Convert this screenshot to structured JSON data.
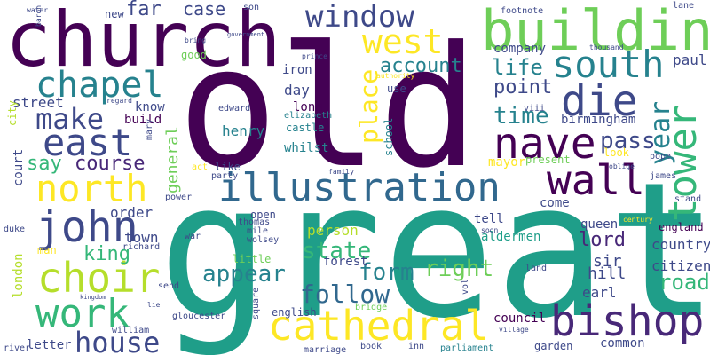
{
  "palette": {
    "dark_purple": "#440154",
    "purple": "#482878",
    "indigo": "#3e4989",
    "blue": "#31688e",
    "teal": "#26828e",
    "teal_green": "#1f9e89",
    "green": "#35b779",
    "light_green": "#6ece58",
    "lime": "#b5de2b",
    "yellow": "#fde725"
  },
  "words": [
    {
      "text": "great",
      "color": "#1f9e89"
    },
    {
      "text": "old",
      "color": "#440154"
    },
    {
      "text": "church",
      "color": "#440154"
    },
    {
      "text": "building",
      "color": "#6ece58"
    },
    {
      "text": "cathedral",
      "color": "#fde725"
    },
    {
      "text": "illustration",
      "color": "#31688e"
    },
    {
      "text": "bishop",
      "color": "#482878"
    },
    {
      "text": "wall",
      "color": "#440154"
    },
    {
      "text": "nave",
      "color": "#440154"
    },
    {
      "text": "choir",
      "color": "#b5de2b"
    },
    {
      "text": "work",
      "color": "#35b779"
    },
    {
      "text": "north",
      "color": "#fde725"
    },
    {
      "text": "east",
      "color": "#3e4989"
    },
    {
      "text": "john",
      "color": "#3e4989"
    },
    {
      "text": "chapel",
      "color": "#26828e"
    },
    {
      "text": "west",
      "color": "#fde725"
    },
    {
      "text": "south",
      "color": "#26828e"
    },
    {
      "text": "die",
      "color": "#3e4989"
    },
    {
      "text": "window",
      "color": "#3e4989"
    },
    {
      "text": "make",
      "color": "#3e4989"
    },
    {
      "text": "house",
      "color": "#3e4989"
    },
    {
      "text": "tower",
      "color": "#35b779"
    },
    {
      "text": "year",
      "color": "#26828e"
    },
    {
      "text": "place",
      "color": "#fde725"
    },
    {
      "text": "follow",
      "color": "#31688e"
    },
    {
      "text": "state",
      "color": "#35b779"
    },
    {
      "text": "appear",
      "color": "#26828e"
    },
    {
      "text": "form",
      "color": "#26828e"
    },
    {
      "text": "account",
      "color": "#26828e"
    },
    {
      "text": "life",
      "color": "#26828e"
    },
    {
      "text": "time",
      "color": "#26828e"
    },
    {
      "text": "say",
      "color": "#35b779"
    },
    {
      "text": "course",
      "color": "#482878"
    },
    {
      "text": "pass",
      "color": "#3e4989"
    },
    {
      "text": "right",
      "color": "#6ece58"
    },
    {
      "text": "road",
      "color": "#35b779"
    },
    {
      "text": "lord",
      "color": "#482878"
    },
    {
      "text": "king",
      "color": "#35b779"
    },
    {
      "text": "point",
      "color": "#3e4989"
    },
    {
      "text": "case",
      "color": "#3e4989"
    },
    {
      "text": "far",
      "color": "#3e4989"
    },
    {
      "text": "general",
      "color": "#6ece58"
    },
    {
      "text": "person",
      "color": "#b5de2b"
    },
    {
      "text": "day",
      "color": "#3e4989"
    },
    {
      "text": "street",
      "color": "#3e4989"
    },
    {
      "text": "town",
      "color": "#3e4989"
    },
    {
      "text": "order",
      "color": "#3e4989"
    },
    {
      "text": "sir",
      "color": "#3e4989"
    },
    {
      "text": "hill",
      "color": "#3e4989"
    },
    {
      "text": "earl",
      "color": "#3e4989"
    },
    {
      "text": "country",
      "color": "#3e4989"
    },
    {
      "text": "citizen",
      "color": "#3e4989"
    },
    {
      "text": "london",
      "color": "#b5de2b"
    },
    {
      "text": "court",
      "color": "#3e4989"
    },
    {
      "text": "henry",
      "color": "#26828e"
    },
    {
      "text": "long",
      "color": "#440154"
    },
    {
      "text": "know",
      "color": "#3e4989"
    },
    {
      "text": "build",
      "color": "#440154"
    },
    {
      "text": "company",
      "color": "#3e4989"
    },
    {
      "text": "paul",
      "color": "#3e4989"
    },
    {
      "text": "birmingham",
      "color": "#3e4989"
    },
    {
      "text": "whilst",
      "color": "#26828e"
    },
    {
      "text": "castle",
      "color": "#26828e"
    },
    {
      "text": "iron",
      "color": "#3e4989"
    },
    {
      "text": "school",
      "color": "#26828e"
    },
    {
      "text": "mayor",
      "color": "#fde725"
    },
    {
      "text": "present",
      "color": "#6ece58"
    },
    {
      "text": "look",
      "color": "#fde725"
    },
    {
      "text": "come",
      "color": "#3e4989"
    },
    {
      "text": "aldermen",
      "color": "#1f9e89"
    },
    {
      "text": "forest",
      "color": "#3e4989"
    },
    {
      "text": "england",
      "color": "#440154"
    },
    {
      "text": "queen",
      "color": "#3e4989"
    },
    {
      "text": "tell",
      "color": "#3e4989"
    },
    {
      "text": "council",
      "color": "#440154"
    },
    {
      "text": "common",
      "color": "#3e4989"
    },
    {
      "text": "garden",
      "color": "#3e4989"
    },
    {
      "text": "letter",
      "color": "#3e4989"
    },
    {
      "text": "man",
      "color": "#fde725"
    },
    {
      "text": "little",
      "color": "#6ece58"
    },
    {
      "text": "english",
      "color": "#3e4989"
    },
    {
      "text": "open",
      "color": "#3e4989"
    },
    {
      "text": "good",
      "color": "#6ece58"
    },
    {
      "text": "use",
      "color": "#3e4989"
    },
    {
      "text": "new",
      "color": "#3e4989"
    },
    {
      "text": "james",
      "color": "#3e4989"
    },
    {
      "text": "stand",
      "color": "#3e4989"
    },
    {
      "text": "like",
      "color": "#3e4989"
    },
    {
      "text": "gloucester",
      "color": "#3e4989"
    },
    {
      "text": "bridge",
      "color": "#6ece58"
    },
    {
      "text": "square",
      "color": "#3e4989"
    },
    {
      "text": "marriage",
      "color": "#3e4989"
    },
    {
      "text": "book",
      "color": "#3e4989"
    },
    {
      "text": "inn",
      "color": "#3e4989"
    },
    {
      "text": "parliament",
      "color": "#26828e"
    },
    {
      "text": "village",
      "color": "#3e4989"
    },
    {
      "text": "river",
      "color": "#3e4989"
    },
    {
      "text": "william",
      "color": "#3e4989"
    },
    {
      "text": "send",
      "color": "#3e4989"
    },
    {
      "text": "wolsey",
      "color": "#3e4989"
    },
    {
      "text": "mile",
      "color": "#3e4989"
    },
    {
      "text": "thomas",
      "color": "#3e4989"
    },
    {
      "text": "richard",
      "color": "#3e4989"
    },
    {
      "text": "duke",
      "color": "#3e4989"
    },
    {
      "text": "power",
      "color": "#3e4989"
    },
    {
      "text": "act",
      "color": "#fde725"
    },
    {
      "text": "party",
      "color": "#3e4989"
    },
    {
      "text": "war",
      "color": "#3e4989"
    },
    {
      "text": "land",
      "color": "#3e4989"
    },
    {
      "text": "soon",
      "color": "#3e4989"
    },
    {
      "text": "vol",
      "color": "#3e4989"
    },
    {
      "text": "city",
      "color": "#b5de2b"
    },
    {
      "text": "mary",
      "color": "#3e4989"
    },
    {
      "text": "regard",
      "color": "#3e4989"
    },
    {
      "text": "edward",
      "color": "#3e4989"
    },
    {
      "text": "elizabeth",
      "color": "#26828e"
    },
    {
      "text": "authority",
      "color": "#fde725"
    },
    {
      "text": "prince",
      "color": "#3e4989"
    },
    {
      "text": "family",
      "color": "#3e4989"
    },
    {
      "text": "century",
      "color": "#fde725"
    },
    {
      "text": "oblige",
      "color": "#3e4989"
    },
    {
      "text": "pope",
      "color": "#3e4989"
    },
    {
      "text": "viii",
      "color": "#3e4989"
    },
    {
      "text": "thousand",
      "color": "#3e4989"
    },
    {
      "text": "lane",
      "color": "#3e4989"
    },
    {
      "text": "footnote",
      "color": "#3e4989"
    },
    {
      "text": "son",
      "color": "#3e4989"
    },
    {
      "text": "government",
      "color": "#3e4989"
    },
    {
      "text": "bring",
      "color": "#3e4989"
    },
    {
      "text": "baron",
      "color": "#3e4989"
    },
    {
      "text": "water",
      "color": "#3e4989"
    },
    {
      "text": "kingdom",
      "color": "#3e4989"
    },
    {
      "text": "lie",
      "color": "#3e4989"
    }
  ]
}
